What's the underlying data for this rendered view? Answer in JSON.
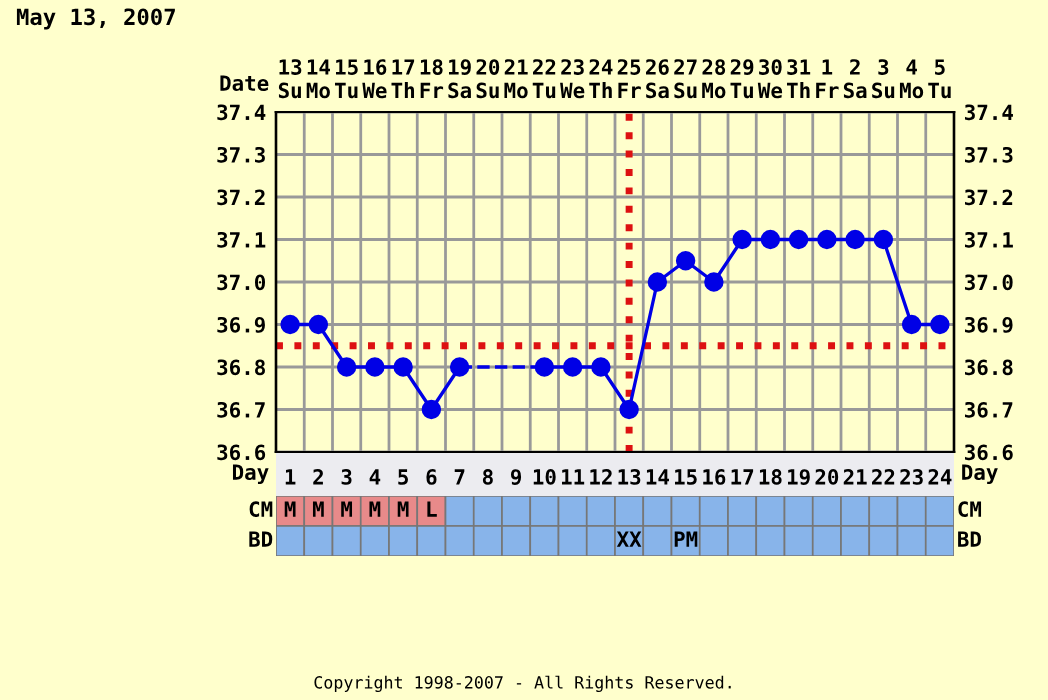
{
  "chart_data": [
    {
      "type": "line",
      "title": "May 13, 2007",
      "xlabel": "Date",
      "x2label": "Day",
      "x": [
        "2007-05-13",
        "2007-05-14",
        "2007-05-15",
        "2007-05-16",
        "2007-05-17",
        "2007-05-18",
        "2007-05-19",
        "2007-05-20",
        "2007-05-21",
        "2007-05-22",
        "2007-05-23",
        "2007-05-24",
        "2007-05-25",
        "2007-05-26",
        "2007-05-27",
        "2007-05-28",
        "2007-05-29",
        "2007-05-30",
        "2007-05-31",
        "2007-06-01",
        "2007-06-02",
        "2007-06-03",
        "2007-06-04",
        "2007-06-05"
      ],
      "xlim": [
        "2007-05-12T12:00",
        "2007-06-05T12:00"
      ],
      "xticks": [
        {
          "value": "2007-05-13",
          "label": "13\nSu"
        },
        {
          "value": "2007-05-14",
          "label": "14\nMo"
        },
        {
          "value": "2007-05-15",
          "label": "15\nTu"
        },
        {
          "value": "2007-05-16",
          "label": "16\nWe"
        },
        {
          "value": "2007-05-17",
          "label": "17\nTh"
        },
        {
          "value": "2007-05-18",
          "label": "18\nFr"
        },
        {
          "value": "2007-05-19",
          "label": "19\nSa"
        },
        {
          "value": "2007-05-20",
          "label": "20\nSu"
        },
        {
          "value": "2007-05-21",
          "label": "21\nMo"
        },
        {
          "value": "2007-05-22",
          "label": "22\nTu"
        },
        {
          "value": "2007-05-23",
          "label": "23\nWe"
        },
        {
          "value": "2007-05-24",
          "label": "24\nTh"
        },
        {
          "value": "2007-05-25",
          "label": "25\nFr"
        },
        {
          "value": "2007-05-26",
          "label": "26\nSa"
        },
        {
          "value": "2007-05-27",
          "label": "27\nSu"
        },
        {
          "value": "2007-05-28",
          "label": "28\nMo"
        },
        {
          "value": "2007-05-29",
          "label": "29\nTu"
        },
        {
          "value": "2007-05-30",
          "label": "30\nWe"
        },
        {
          "value": "2007-05-31",
          "label": "31\nTh"
        },
        {
          "value": "2007-06-01",
          "label": "1\nFr"
        },
        {
          "value": "2007-06-02",
          "label": "2\nSa"
        },
        {
          "value": "2007-06-03",
          "label": "3\nSu"
        },
        {
          "value": "2007-06-04",
          "label": "4\nMo"
        },
        {
          "value": "2007-06-05",
          "label": "5\nTu"
        }
      ],
      "x2lim": [
        0.5,
        24.5
      ],
      "x2ticks": [
        1,
        2,
        3,
        4,
        5,
        6,
        7,
        8,
        9,
        10,
        11,
        12,
        13,
        14,
        15,
        16,
        17,
        18,
        19,
        20,
        21,
        22,
        23,
        24
      ],
      "series": [
        {
          "color": "#0000e6",
          "values": [
            36.9,
            36.9,
            36.8,
            36.8,
            36.8,
            36.7,
            36.8,
            null,
            null,
            36.8,
            36.8,
            36.8,
            36.7,
            37.0,
            37.05,
            37.0,
            37.1,
            37.1,
            37.1,
            37.1,
            37.1,
            37.1,
            36.9,
            36.9
          ]
        }
      ],
      "ylim": [
        36.6,
        37.4
      ],
      "yticks": [
        {
          "value": 36.6,
          "label": "36.6"
        },
        {
          "value": 36.7,
          "label": "36.7"
        },
        {
          "value": 36.8,
          "label": "36.8"
        },
        {
          "value": 36.9,
          "label": "36.9"
        },
        {
          "value": 37.0,
          "label": "37.0"
        },
        {
          "value": 37.1,
          "label": "37.1"
        },
        {
          "value": 37.2,
          "label": "37.2"
        },
        {
          "value": 37.3,
          "label": "37.3"
        },
        {
          "value": 37.4,
          "label": "37.4"
        }
      ],
      "y2lim": [
        36.6,
        37.4
      ],
      "y2ticks": [
        {
          "value": 36.6,
          "label": "36.6"
        },
        {
          "value": 36.7,
          "label": "36.7"
        },
        {
          "value": 36.8,
          "label": "36.8"
        },
        {
          "value": 36.9,
          "label": "36.9"
        },
        {
          "value": 37.0,
          "label": "37.0"
        },
        {
          "value": 37.1,
          "label": "37.1"
        },
        {
          "value": 37.2,
          "label": "37.2"
        },
        {
          "value": 37.3,
          "label": "37.3"
        },
        {
          "value": 37.4,
          "label": "37.4"
        }
      ],
      "ref_lines": [
        {
          "axis": "y",
          "value": 36.85,
          "color": "#dd1111",
          "line_style": "dotted"
        },
        {
          "axis": "x",
          "value": "2007-05-25",
          "color": "#dd1111",
          "line_style": "dotted"
        }
      ],
      "grid": true,
      "marker": "circle",
      "line_style": "solid"
    },
    {
      "type": "other",
      "y_categories": [
        "CM",
        "BD"
      ],
      "cell_labels": [
        [
          "M",
          "M",
          "M",
          "M",
          "M",
          "L",
          null,
          null,
          null,
          null,
          null,
          null,
          null,
          null,
          null,
          null,
          null,
          null,
          null,
          null,
          null,
          null,
          null,
          null
        ],
        [
          null,
          null,
          null,
          null,
          null,
          null,
          null,
          null,
          null,
          null,
          null,
          null,
          "XX",
          null,
          "PM",
          null,
          null,
          null,
          null,
          null,
          null,
          null,
          null,
          null
        ]
      ],
      "colors": [
        [
          "#e88a8a",
          "#e88a8a",
          "#e88a8a",
          "#e88a8a",
          "#e88a8a",
          "#e88a8a",
          "#88b4ea",
          "#88b4ea",
          "#88b4ea",
          "#88b4ea",
          "#88b4ea",
          "#88b4ea",
          "#88b4ea",
          "#88b4ea",
          "#88b4ea",
          "#88b4ea",
          "#88b4ea",
          "#88b4ea",
          "#88b4ea",
          "#88b4ea",
          "#88b4ea",
          "#88b4ea",
          "#88b4ea",
          "#88b4ea"
        ],
        [
          "#88b4ea",
          "#88b4ea",
          "#88b4ea",
          "#88b4ea",
          "#88b4ea",
          "#88b4ea",
          "#88b4ea",
          "#88b4ea",
          "#88b4ea",
          "#88b4ea",
          "#88b4ea",
          "#88b4ea",
          "#88b4ea",
          "#88b4ea",
          "#88b4ea",
          "#88b4ea",
          "#88b4ea",
          "#88b4ea",
          "#88b4ea",
          "#88b4ea",
          "#88b4ea",
          "#88b4ea",
          "#88b4ea",
          "#88b4ea"
        ]
      ],
      "annotations": [
        "Copyright 1998-2007 - All Rights Reserved."
      ]
    }
  ]
}
